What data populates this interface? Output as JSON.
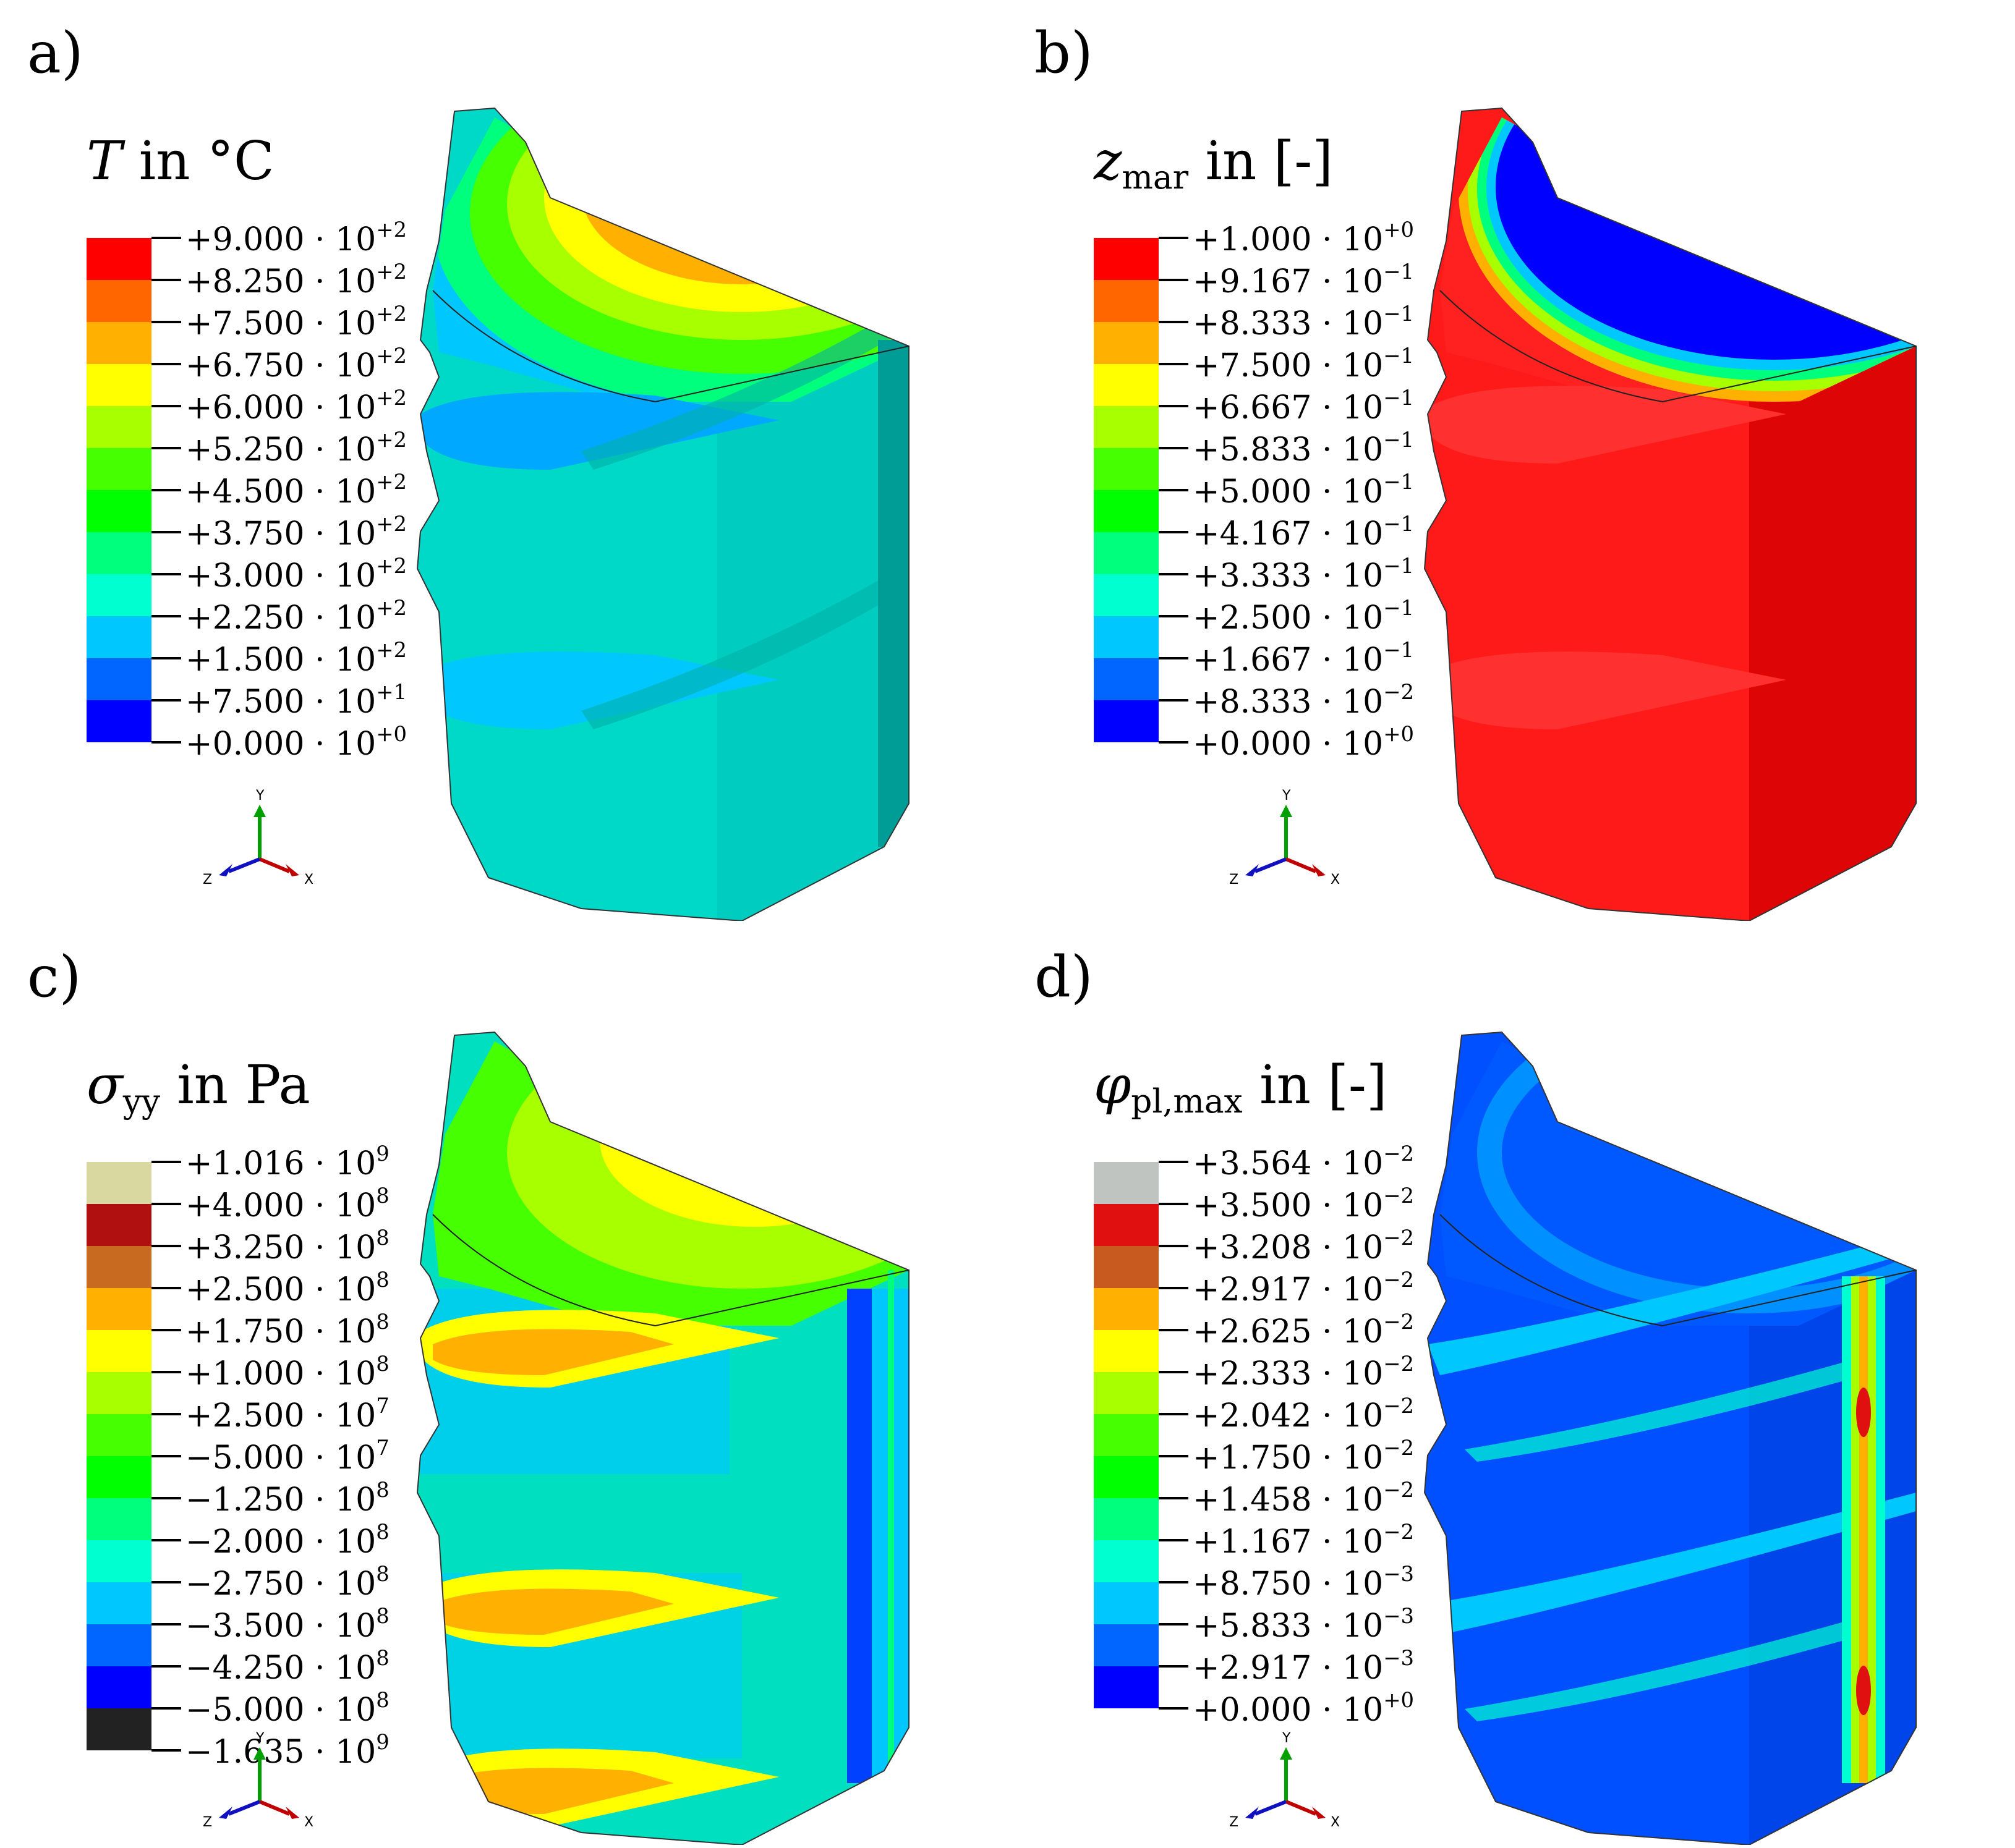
{
  "panels": [
    {
      "label": "a)",
      "title": {
        "symbol": "T",
        "sub": "",
        "unit": " in °C"
      },
      "legend": {
        "colors": [
          "#ff0000",
          "#ff6600",
          "#ffb000",
          "#ffff00",
          "#a8ff00",
          "#46ff00",
          "#00ff00",
          "#00ff7c",
          "#00ffd0",
          "#00c8ff",
          "#0066ff",
          "#0000ff"
        ],
        "labels": [
          {
            "m": "+9.000 · 10",
            "e": "+2"
          },
          {
            "m": "+8.250 · 10",
            "e": "+2"
          },
          {
            "m": "+7.500 · 10",
            "e": "+2"
          },
          {
            "m": "+6.750 · 10",
            "e": "+2"
          },
          {
            "m": "+6.000 · 10",
            "e": "+2"
          },
          {
            "m": "+5.250 · 10",
            "e": "+2"
          },
          {
            "m": "+4.500 · 10",
            "e": "+2"
          },
          {
            "m": "+3.750 · 10",
            "e": "+2"
          },
          {
            "m": "+3.000 · 10",
            "e": "+2"
          },
          {
            "m": "+2.250 · 10",
            "e": "+2"
          },
          {
            "m": "+1.500 · 10",
            "e": "+2"
          },
          {
            "m": "+7.500 · 10",
            "e": "+1"
          },
          {
            "m": "+0.000 · 10",
            "e": "+0"
          }
        ]
      },
      "model": "temperature"
    },
    {
      "label": "b)",
      "title": {
        "symbol": "z",
        "sub": "mar",
        "unit": " in [-]"
      },
      "legend": {
        "colors": [
          "#ff0000",
          "#ff6600",
          "#ffb000",
          "#ffff00",
          "#a8ff00",
          "#46ff00",
          "#00ff00",
          "#00ff7c",
          "#00ffd0",
          "#00c8ff",
          "#0066ff",
          "#0000ff"
        ],
        "labels": [
          {
            "m": "+1.000 · 10",
            "e": "+0"
          },
          {
            "m": "+9.167 · 10",
            "e": "−1"
          },
          {
            "m": "+8.333 · 10",
            "e": "−1"
          },
          {
            "m": "+7.500 · 10",
            "e": "−1"
          },
          {
            "m": "+6.667 · 10",
            "e": "−1"
          },
          {
            "m": "+5.833 · 10",
            "e": "−1"
          },
          {
            "m": "+5.000 · 10",
            "e": "−1"
          },
          {
            "m": "+4.167 · 10",
            "e": "−1"
          },
          {
            "m": "+3.333 · 10",
            "e": "−1"
          },
          {
            "m": "+2.500 · 10",
            "e": "−1"
          },
          {
            "m": "+1.667 · 10",
            "e": "−1"
          },
          {
            "m": "+8.333 · 10",
            "e": "−2"
          },
          {
            "m": "+0.000 · 10",
            "e": "+0"
          }
        ]
      },
      "model": "martensite"
    },
    {
      "label": "c)",
      "title": {
        "symbol": "σ",
        "sub": "yy",
        "unit": " in Pa"
      },
      "legend": {
        "colors": [
          "#d8d8a0",
          "#b01010",
          "#c86a20",
          "#ffb000",
          "#ffff00",
          "#a8ff00",
          "#46ff00",
          "#00ff00",
          "#00ff7c",
          "#00ffd0",
          "#00c8ff",
          "#0066ff",
          "#0000ff",
          "#222222"
        ],
        "labels": [
          {
            "m": "+1.016 · 10",
            "e": "9"
          },
          {
            "m": "+4.000 · 10",
            "e": "8"
          },
          {
            "m": "+3.250 · 10",
            "e": "8"
          },
          {
            "m": "+2.500 · 10",
            "e": "8"
          },
          {
            "m": "+1.750 · 10",
            "e": "8"
          },
          {
            "m": "+1.000 · 10",
            "e": "8"
          },
          {
            "m": "+2.500 · 10",
            "e": "7"
          },
          {
            "m": "−5.000 · 10",
            "e": "7"
          },
          {
            "m": "−1.250 · 10",
            "e": "8"
          },
          {
            "m": "−2.000 · 10",
            "e": "8"
          },
          {
            "m": "−2.750 · 10",
            "e": "8"
          },
          {
            "m": "−3.500 · 10",
            "e": "8"
          },
          {
            "m": "−4.250 · 10",
            "e": "8"
          },
          {
            "m": "−5.000 · 10",
            "e": "8"
          },
          {
            "m": "−1.635 · 10",
            "e": "9"
          }
        ]
      },
      "model": "stress"
    },
    {
      "label": "d)",
      "title": {
        "symbol": "φ",
        "sub": "pl,max",
        "unit": " in [-]"
      },
      "legend": {
        "colors": [
          "#c0c4c0",
          "#e01010",
          "#c85a20",
          "#ffb000",
          "#ffff00",
          "#a8ff00",
          "#46ff00",
          "#00ff00",
          "#00ff7c",
          "#00ffd0",
          "#00c8ff",
          "#0066ff",
          "#0000ff"
        ],
        "labels": [
          {
            "m": "+3.564 · 10",
            "e": "−2"
          },
          {
            "m": "+3.500 · 10",
            "e": "−2"
          },
          {
            "m": "+3.208 · 10",
            "e": "−2"
          },
          {
            "m": "+2.917 · 10",
            "e": "−2"
          },
          {
            "m": "+2.625 · 10",
            "e": "−2"
          },
          {
            "m": "+2.333 · 10",
            "e": "−2"
          },
          {
            "m": "+2.042 · 10",
            "e": "−2"
          },
          {
            "m": "+1.750 · 10",
            "e": "−2"
          },
          {
            "m": "+1.458 · 10",
            "e": "−2"
          },
          {
            "m": "+1.167 · 10",
            "e": "−2"
          },
          {
            "m": "+8.750 · 10",
            "e": "−3"
          },
          {
            "m": "+5.833 · 10",
            "e": "−3"
          },
          {
            "m": "+2.917 · 10",
            "e": "−3"
          },
          {
            "m": "+0.000 · 10",
            "e": "+0"
          }
        ]
      },
      "model": "plastic"
    }
  ],
  "triad": {
    "x": "X",
    "y": "Y",
    "z": "Z",
    "x_color": "#c00000",
    "y_color": "#00a000",
    "z_color": "#1010c0"
  }
}
